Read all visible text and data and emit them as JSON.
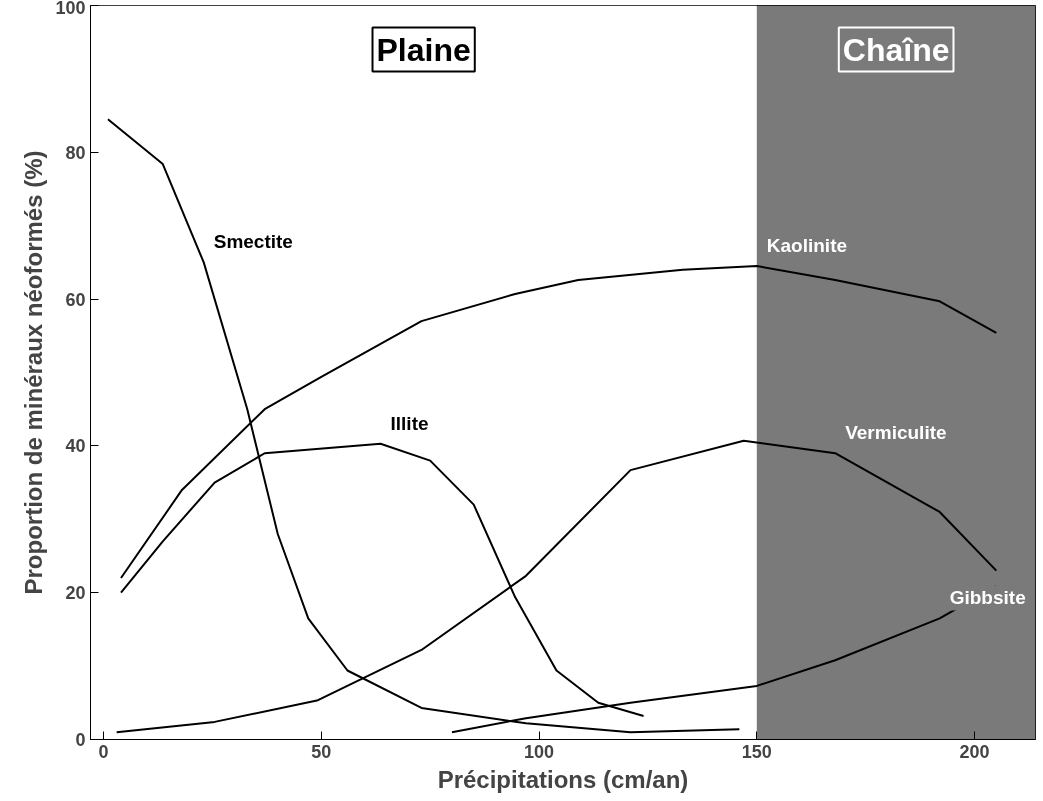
{
  "chart_data": {
    "type": "line",
    "xlabel": "Précipitations (cm/an)",
    "ylabel": "Proportion de minéraux néoformés (%)",
    "xlim": [
      -3,
      214
    ],
    "ylim": [
      0,
      100
    ],
    "xticks": [
      0,
      50,
      100,
      150,
      200
    ],
    "yticks": [
      0,
      20,
      40,
      60,
      80,
      100
    ],
    "grid": false,
    "marker": "none",
    "line_style": "solid",
    "series": [
      {
        "color": "#000000",
        "x": [
          1,
          13.6,
          23,
          33,
          40,
          47,
          56,
          73,
          97,
          121,
          146
        ],
        "values": [
          84.5,
          78.4,
          65,
          45,
          28,
          16.5,
          9.4,
          4.3,
          2.2,
          1,
          1.4
        ]
      },
      {
        "color": "#000000",
        "x": [
          4,
          13.6,
          25.5,
          37,
          63.6,
          75,
          85,
          94.5,
          104,
          113.6,
          124
        ],
        "values": [
          20,
          27,
          35,
          39,
          40.3,
          38,
          32,
          19.4,
          9.4,
          5,
          3.2
        ]
      },
      {
        "color": "#000000",
        "x": [
          4,
          18,
          37,
          50,
          73,
          94.5,
          109,
          133,
          150,
          168,
          192,
          205
        ],
        "values": [
          22,
          34,
          45,
          49.4,
          57,
          60.7,
          62.6,
          64,
          64.5,
          62.6,
          59.7,
          55.4
        ]
      },
      {
        "color": "#000000",
        "x": [
          3,
          25.5,
          49,
          73,
          97,
          121,
          147,
          168,
          192,
          205
        ],
        "values": [
          1,
          2.4,
          5.3,
          12.2,
          22.3,
          36.7,
          40.7,
          39,
          31,
          23
        ]
      },
      {
        "color": "#000000",
        "x": [
          80,
          97,
          121,
          150,
          168,
          192,
          205
        ],
        "values": [
          1,
          2.9,
          5,
          7.3,
          10.8,
          16.5,
          20.9
        ]
      }
    ],
    "bands": [
      {
        "axis": "x",
        "from": -3,
        "to": 150,
        "label": "Plaine",
        "color": "#ffffff"
      },
      {
        "axis": "x",
        "from": 150,
        "to": 214,
        "label": "Chaîne",
        "color": "#7a7a7a"
      }
    ],
    "annotations": [
      {
        "text": "Smectite",
        "x": 23,
        "y": 65
      },
      {
        "text": "Illite",
        "x": 63.6,
        "y": 40.3
      },
      {
        "text": "Kaolinite",
        "x": 150,
        "y": 64.5
      },
      {
        "text": "Vermiculite",
        "x": 168,
        "y": 39
      },
      {
        "text": "Gibbsite",
        "x": 192,
        "y": 16.5
      }
    ]
  }
}
